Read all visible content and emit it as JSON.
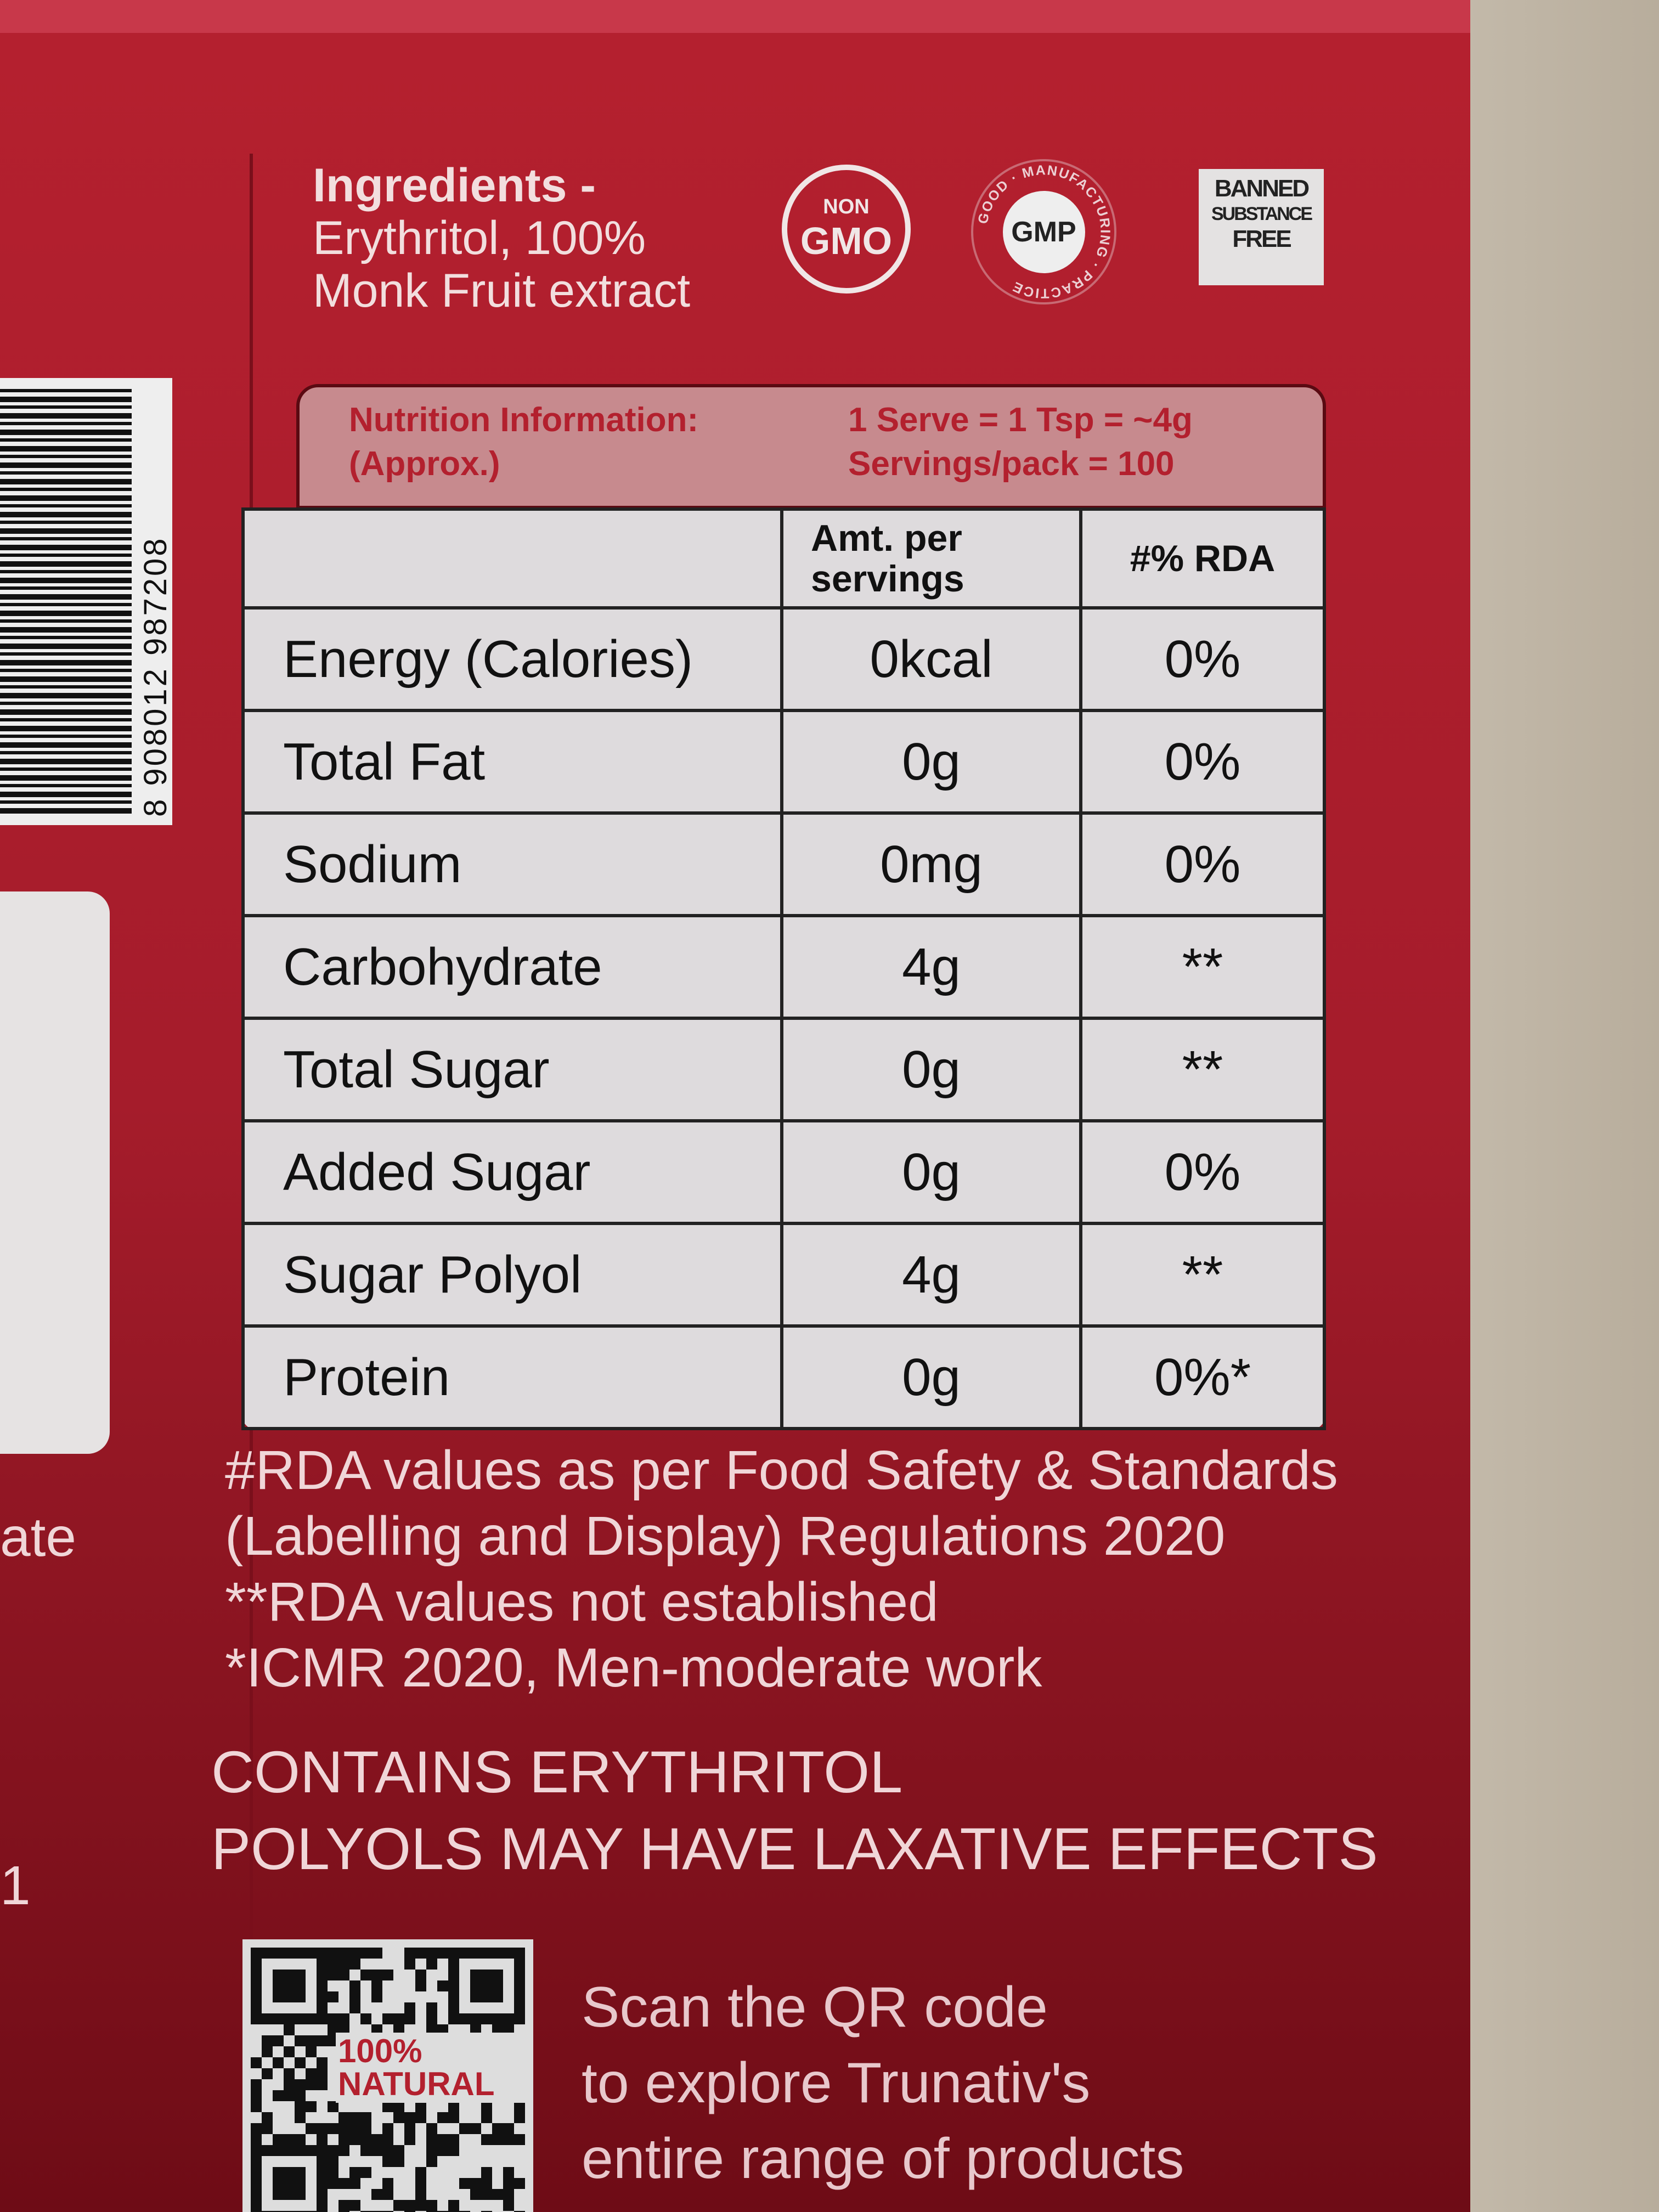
{
  "ingredients": {
    "title": "Ingredients -",
    "line1": "Erythritol, 100%",
    "line2": "Monk Fruit extract"
  },
  "badges": {
    "non_gmo_small": "NON",
    "non_gmo_large": "GMO",
    "gmp": "GMP",
    "gmp_ring": "GOOD · MANUFACTURING · PRACTICE",
    "banned_1": "BANNED",
    "banned_2": "SUBSTANCE",
    "banned_3": "FREE"
  },
  "nutrition": {
    "title": "Nutrition Information:",
    "approx": "(Approx.)",
    "serve": "1 Serve = 1 Tsp = ~4g",
    "servings": "Servings/pack = 100",
    "columns": [
      "",
      "Amt. per servings",
      "#% RDA"
    ],
    "rows": [
      {
        "name": "Energy (Calories)",
        "amount": "0kcal",
        "rda": "0%"
      },
      {
        "name": "Total Fat",
        "amount": "0g",
        "rda": "0%"
      },
      {
        "name": "Sodium",
        "amount": "0mg",
        "rda": "0%"
      },
      {
        "name": "Carbohydrate",
        "amount": "4g",
        "rda": "**"
      },
      {
        "name": "Total Sugar",
        "amount": "0g",
        "rda": "**"
      },
      {
        "name": "Added Sugar",
        "amount": "0g",
        "rda": "0%"
      },
      {
        "name": "Sugar Polyol",
        "amount": "4g",
        "rda": "**"
      },
      {
        "name": "Protein",
        "amount": "0g",
        "rda": "0%*"
      }
    ]
  },
  "footnotes": [
    "#RDA values as per Food Safety & Standards",
    "(Labelling and Display) Regulations 2020",
    "**RDA values not established",
    "*ICMR 2020, Men-moderate work"
  ],
  "warning": [
    "CONTAINS ERYTHRITOL",
    "POLYOLS MAY HAVE LAXATIVE EFFECTS"
  ],
  "qr": {
    "badge": "100% NATURAL",
    "text": [
      "Scan the QR code",
      "to explore Trunativ's",
      "entire range of products"
    ]
  },
  "barcode": "8 908012 987208",
  "fragments": {
    "ate": "ate",
    "one": "1"
  }
}
